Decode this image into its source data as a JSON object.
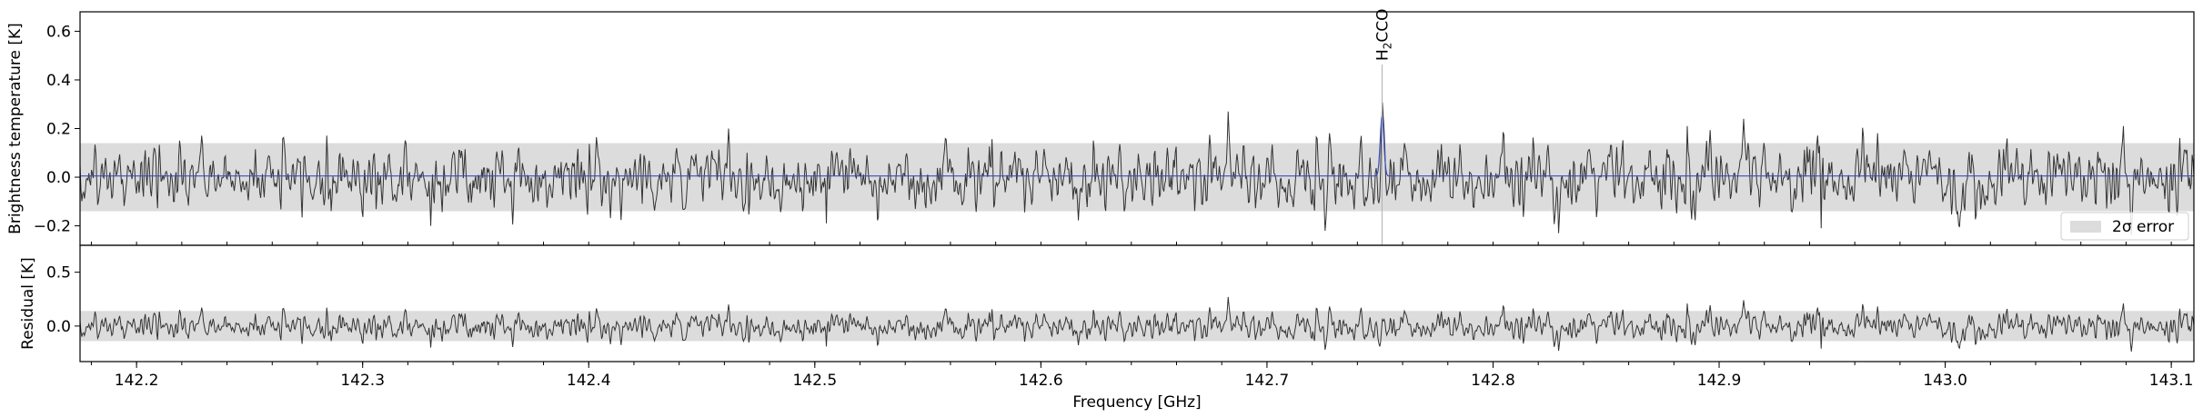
{
  "chart_data": [
    {
      "type": "line",
      "panel": "spectrum",
      "xlabel": "",
      "ylabel": "Brightness temperature [K]",
      "xlim": [
        142.175,
        143.11
      ],
      "ylim": [
        -0.28,
        0.68
      ],
      "yticks": [
        -0.2,
        0.0,
        0.2,
        0.4,
        0.6
      ],
      "ytick_labels": [
        "−0.2",
        "0.0",
        "0.2",
        "0.4",
        "0.6"
      ],
      "grid": false,
      "error_band": {
        "low": -0.14,
        "high": 0.14,
        "label": "2σ error",
        "color": "#dcdcdc"
      },
      "legend": {
        "position": "lower-right",
        "entries": [
          "2σ error"
        ]
      },
      "series": [
        {
          "name": "",
          "role": "observed spectrum (noise, std ≈ 0.065 K)",
          "color": "#333333",
          "peaks": [
            {
              "x": 142.462,
              "y": 0.2
            },
            {
              "x": 142.683,
              "y": 0.27
            },
            {
              "x": 142.886,
              "y": 0.21
            },
            {
              "x": 142.911,
              "y": 0.24
            },
            {
              "x": 143.079,
              "y": 0.21
            }
          ],
          "troughs": [
            {
              "x": 142.33,
              "y": -0.2
            },
            {
              "x": 142.505,
              "y": -0.19
            },
            {
              "x": 142.75,
              "y": -0.19
            },
            {
              "x": 142.829,
              "y": -0.23
            },
            {
              "x": 142.945,
              "y": -0.21
            }
          ]
        },
        {
          "name": "",
          "role": "model fit",
          "color": "#3b4cc0",
          "baseline": 0.005,
          "lines": [
            {
              "center": 142.7509,
              "amplitude": 0.25,
              "width": 0.0008
            }
          ]
        }
      ],
      "annotations": [
        {
          "x": 142.7509,
          "label_main": "H",
          "label_sub": "2",
          "label_tail": "CCO"
        }
      ]
    },
    {
      "type": "line",
      "panel": "residual",
      "xlabel": "Frequency [GHz]",
      "ylabel": "Residual [K]",
      "xlim": [
        142.175,
        143.11
      ],
      "ylim": [
        -0.33,
        0.75
      ],
      "yticks": [
        0.0,
        0.5
      ],
      "ytick_labels": [
        "0.0",
        "0.5"
      ],
      "xticks": [
        142.2,
        142.3,
        142.4,
        142.5,
        142.6,
        142.7,
        142.8,
        142.9,
        143.0,
        143.1
      ],
      "xtick_labels": [
        "142.2",
        "142.3",
        "142.4",
        "142.5",
        "142.6",
        "142.7",
        "142.8",
        "142.9",
        "143.0",
        "143.1"
      ],
      "grid": false,
      "error_band": {
        "low": -0.14,
        "high": 0.14,
        "color": "#dcdcdc"
      },
      "series": [
        {
          "name": "",
          "role": "residual (observed minus model)",
          "color": "#333333"
        }
      ]
    }
  ]
}
